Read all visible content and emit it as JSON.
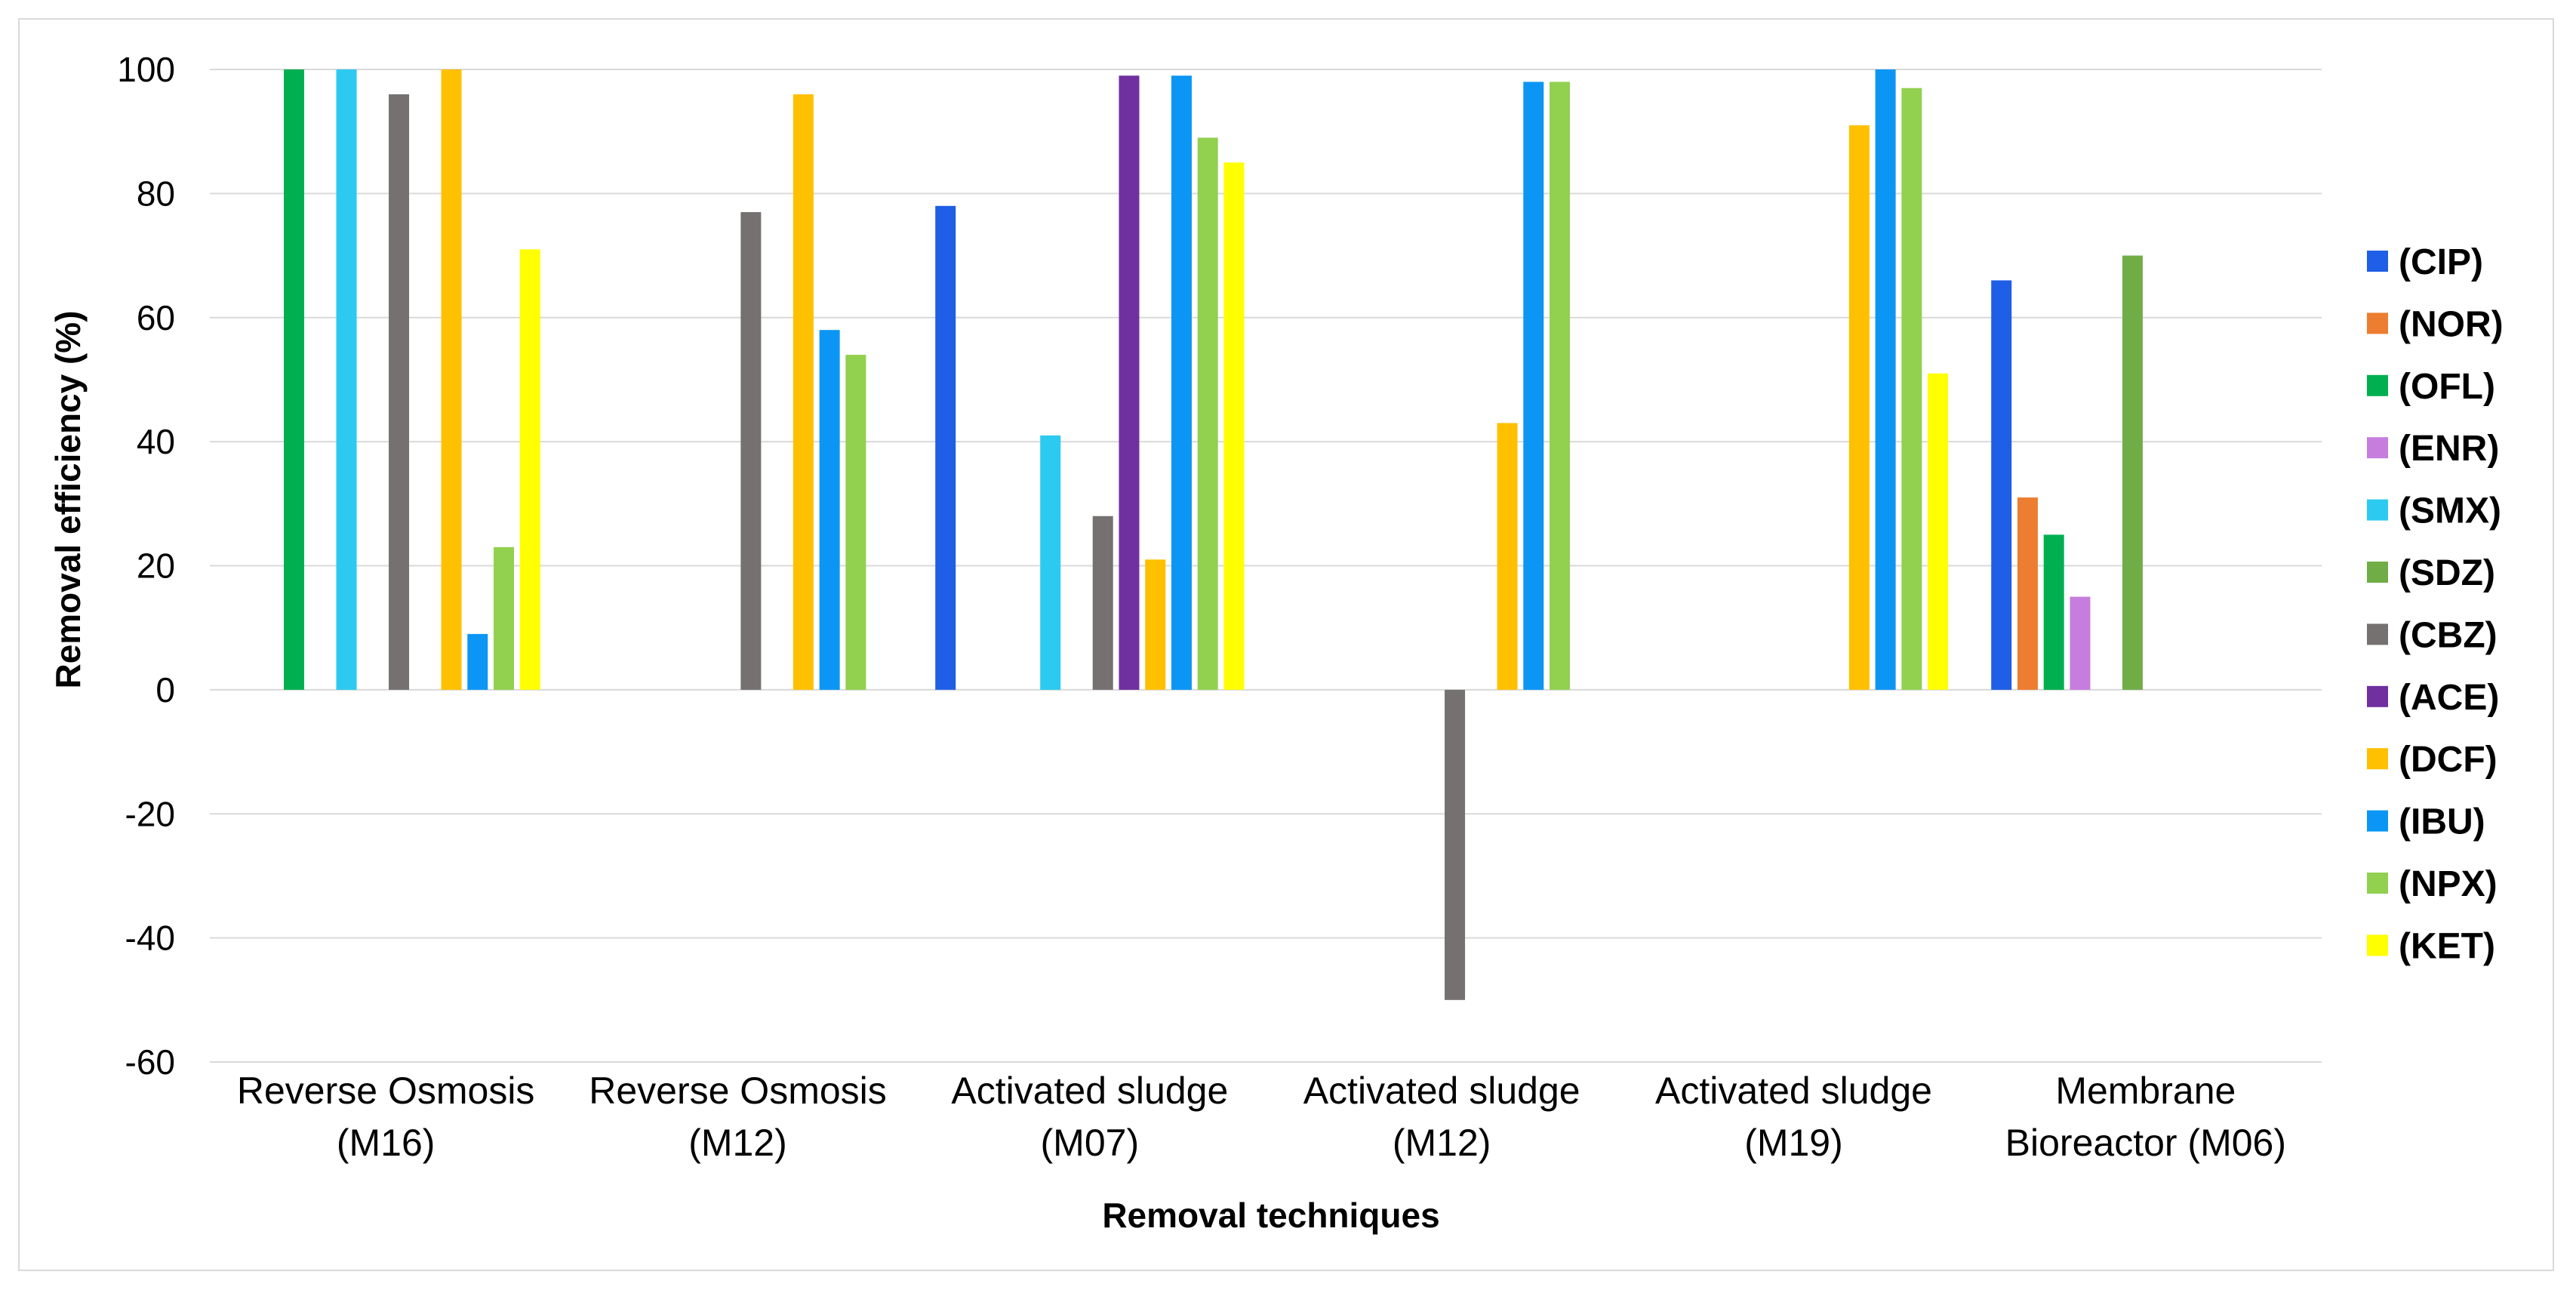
{
  "chart_data": {
    "type": "bar",
    "title": "",
    "xlabel": "Removal techniques",
    "ylabel": "Removal efficiency (%)",
    "ylim": [
      -60,
      100
    ],
    "yticks": [
      "100",
      "80",
      "60",
      "40",
      "20",
      "0",
      "-20",
      "-40",
      "-60"
    ],
    "grid": true,
    "legend_position": "right",
    "categories": [
      {
        "line1": "Reverse Osmosis",
        "line2": "(M16)"
      },
      {
        "line1": "Reverse Osmosis",
        "line2": "(M12)"
      },
      {
        "line1": "Activated sludge",
        "line2": "(M07)"
      },
      {
        "line1": "Activated sludge",
        "line2": "(M12)"
      },
      {
        "line1": "Activated sludge",
        "line2": "(M19)"
      },
      {
        "line1": "Membrane",
        "line2": "Bioreactor (M06)"
      }
    ],
    "series": [
      {
        "name": "(CIP)",
        "color": "#1f5ee6",
        "values": [
          null,
          null,
          78,
          null,
          null,
          66
        ]
      },
      {
        "name": "(NOR)",
        "color": "#ed7d31",
        "values": [
          null,
          null,
          null,
          null,
          null,
          31
        ]
      },
      {
        "name": "(OFL)",
        "color": "#00b050",
        "values": [
          100,
          null,
          null,
          null,
          null,
          25
        ]
      },
      {
        "name": "(ENR)",
        "color": "#c77dde",
        "values": [
          null,
          null,
          null,
          null,
          null,
          15
        ]
      },
      {
        "name": "(SMX)",
        "color": "#2ccaf0",
        "values": [
          100,
          null,
          41,
          null,
          null,
          null
        ]
      },
      {
        "name": "(SDZ)",
        "color": "#70ad47",
        "values": [
          null,
          null,
          null,
          null,
          null,
          70
        ]
      },
      {
        "name": "(CBZ)",
        "color": "#767171",
        "values": [
          96,
          77,
          28,
          -50,
          null,
          null
        ]
      },
      {
        "name": "(ACE)",
        "color": "#7030a0",
        "values": [
          null,
          null,
          99,
          null,
          null,
          null
        ]
      },
      {
        "name": "(DCF)",
        "color": "#ffc000",
        "values": [
          100,
          96,
          21,
          43,
          91,
          null
        ]
      },
      {
        "name": "(IBU)",
        "color": "#0b96f5",
        "values": [
          9,
          58,
          99,
          98,
          100,
          null
        ]
      },
      {
        "name": "(NPX)",
        "color": "#92d050",
        "values": [
          23,
          54,
          89,
          98,
          97,
          null
        ]
      },
      {
        "name": "(KET)",
        "color": "#ffff00",
        "values": [
          71,
          null,
          85,
          null,
          51,
          null
        ]
      }
    ]
  }
}
